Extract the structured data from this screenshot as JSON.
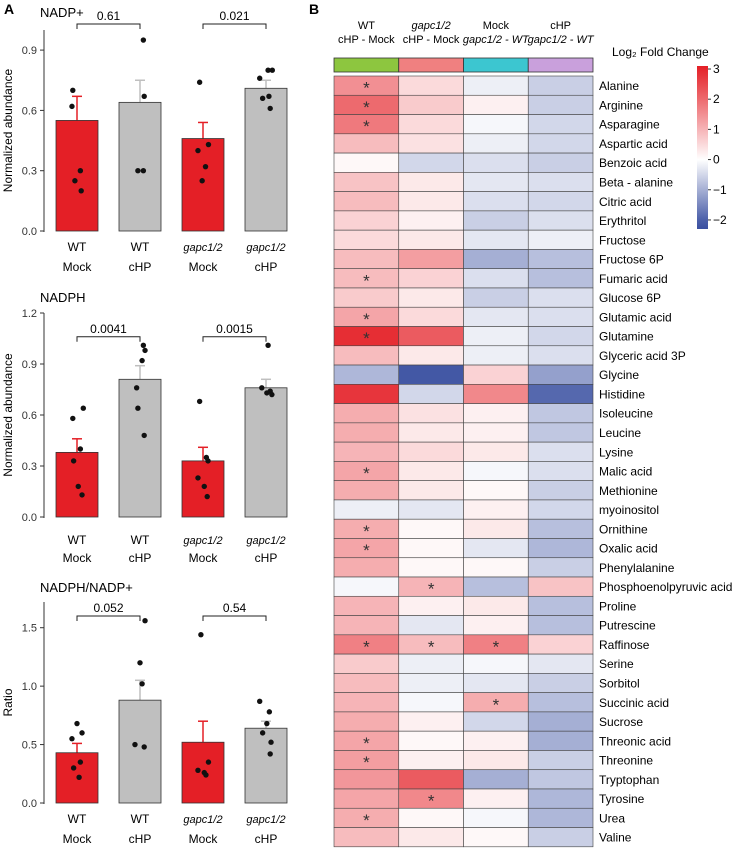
{
  "colors": {
    "mock_bar": "#e41f26",
    "chp_bar": "#bfbfbf",
    "heat_low": "#3a50a1",
    "heat_mid": "#ffffff",
    "heat_high": "#e41f26",
    "col_group_1": "#8dc63f",
    "col_group_2": "#f08080",
    "col_group_3": "#3cc6d0",
    "col_group_4": "#c9a0dc"
  },
  "panel_a": {
    "letter": "A",
    "x_groups": [
      {
        "genotype": "WT",
        "treatment": "Mock",
        "italic": false
      },
      {
        "genotype": "WT",
        "treatment": "cHP",
        "italic": false
      },
      {
        "genotype": "gapc1/2",
        "treatment": "Mock",
        "italic": true
      },
      {
        "genotype": "gapc1/2",
        "treatment": "cHP",
        "italic": true
      }
    ]
  },
  "panel_b": {
    "letter": "B",
    "columns": [
      {
        "line1": "WT",
        "line2": "cHP - Mock",
        "italic1": false,
        "italic2": false
      },
      {
        "line1": "gapc1/2",
        "line2": "cHP - Mock",
        "italic1": true,
        "italic2": false
      },
      {
        "line1": "Mock",
        "line2": "gapc1/2 - WT",
        "italic1": false,
        "italic2": true
      },
      {
        "line1": "cHP",
        "line2": "gapc1/2 - WT",
        "italic1": false,
        "italic2": true
      }
    ],
    "legend": {
      "title": "Log₂ Fold Change",
      "ticks": [
        "3",
        "2",
        "1",
        "0",
        "−1",
        "−2"
      ],
      "tick_values": [
        3,
        2,
        1,
        0,
        -1,
        -2
      ],
      "min": -2.3,
      "max": 3.1
    },
    "significance_mark": "*"
  },
  "chart_data": [
    {
      "type": "bar",
      "title": "NADP+",
      "ylabel": "Normalized abundance",
      "categories": [
        "WT Mock",
        "WT cHP",
        "gapc1/2 Mock",
        "gapc1/2 cHP"
      ],
      "values": [
        0.55,
        0.64,
        0.46,
        0.71
      ],
      "errors": [
        0.12,
        0.11,
        0.08,
        0.04
      ],
      "points": [
        [
          0.7,
          0.62,
          0.3,
          0.25,
          0.2
        ],
        [
          0.95,
          0.67,
          0.3,
          0.3
        ],
        [
          0.74,
          0.43,
          0.4,
          0.32,
          0.25
        ],
        [
          0.8,
          0.8,
          0.76,
          0.67,
          0.66,
          0.61
        ]
      ],
      "point_x": [
        [
          -0.1,
          -0.12,
          0.08,
          -0.05,
          0.1
        ],
        [
          0.08,
          0.1,
          -0.05,
          0.08
        ],
        [
          -0.08,
          0.13,
          -0.12,
          0.06,
          -0.02
        ],
        [
          0.05,
          0.15,
          -0.15,
          0.07,
          -0.08,
          0.1
        ]
      ],
      "yticks": [
        "0.0",
        "0.3",
        "0.6",
        "0.9"
      ],
      "ytick_values": [
        0,
        0.3,
        0.6,
        0.9
      ],
      "ylim": [
        0,
        1.0
      ],
      "comparisons": [
        {
          "from": 0,
          "to": 1,
          "label": "0.61",
          "y": 1.03
        },
        {
          "from": 2,
          "to": 3,
          "label": "0.021",
          "y": 1.03
        }
      ]
    },
    {
      "type": "bar",
      "title": "NADPH",
      "ylabel": "Normalized abundance",
      "categories": [
        "WT Mock",
        "WT cHP",
        "gapc1/2 Mock",
        "gapc1/2 cHP"
      ],
      "values": [
        0.38,
        0.81,
        0.33,
        0.76
      ],
      "errors": [
        0.08,
        0.08,
        0.08,
        0.05
      ],
      "points": [
        [
          0.64,
          0.58,
          0.4,
          0.33,
          0.18,
          0.13
        ],
        [
          1.01,
          0.98,
          0.92,
          0.76,
          0.64,
          0.48
        ],
        [
          0.68,
          0.35,
          0.33,
          0.23,
          0.18,
          0.12
        ],
        [
          1.01,
          0.76,
          0.74,
          0.73,
          0.72
        ]
      ],
      "point_x": [
        [
          0.15,
          -0.1,
          0.08,
          -0.08,
          0.03,
          0.12
        ],
        [
          0.08,
          0.12,
          0.05,
          -0.08,
          -0.05,
          0.1
        ],
        [
          -0.08,
          0.08,
          0.12,
          -0.12,
          0.03,
          0.1
        ],
        [
          0.05,
          -0.1,
          0.1,
          0.02,
          0.14
        ]
      ],
      "yticks": [
        "0.0",
        "0.3",
        "0.6",
        "0.9",
        "1.2"
      ],
      "ytick_values": [
        0,
        0.3,
        0.6,
        0.9,
        1.2
      ],
      "ylim": [
        0,
        1.2
      ],
      "comparisons": [
        {
          "from": 0,
          "to": 1,
          "label": "0.0041",
          "y": 1.06
        },
        {
          "from": 2,
          "to": 3,
          "label": "0.0015",
          "y": 1.06
        }
      ]
    },
    {
      "type": "bar",
      "title": "NADPH/NADP+",
      "ylabel": "Ratio",
      "categories": [
        "WT Mock",
        "WT cHP",
        "gapc1/2 Mock",
        "gapc1/2 cHP"
      ],
      "values": [
        0.43,
        0.88,
        0.52,
        0.64
      ],
      "errors": [
        0.08,
        0.17,
        0.18,
        0.06
      ],
      "points": [
        [
          0.68,
          0.6,
          0.55,
          0.35,
          0.3,
          0.22
        ],
        [
          1.56,
          1.2,
          1.02,
          0.5,
          0.48
        ],
        [
          1.44,
          0.35,
          0.28,
          0.26,
          0.24
        ],
        [
          0.87,
          0.78,
          0.68,
          0.6,
          0.52,
          0.42
        ]
      ],
      "point_x": [
        [
          0.0,
          0.12,
          -0.12,
          0.08,
          -0.08,
          0.05
        ],
        [
          0.12,
          0.0,
          0.05,
          -0.12,
          0.1
        ],
        [
          -0.05,
          0.13,
          -0.12,
          0.03,
          0.07
        ],
        [
          -0.15,
          0.08,
          0.02,
          -0.08,
          0.12,
          0.1
        ]
      ],
      "yticks": [
        "0.0",
        "0.5",
        "1.0",
        "1.5"
      ],
      "ytick_values": [
        0,
        0.5,
        1.0,
        1.5
      ],
      "ylim": [
        0,
        1.72
      ],
      "comparisons": [
        {
          "from": 0,
          "to": 1,
          "label": "0.052",
          "y": 1.6
        },
        {
          "from": 2,
          "to": 3,
          "label": "0.54",
          "y": 1.6
        }
      ]
    },
    {
      "type": "heatmap",
      "title": "",
      "x_labels": [
        "WT cHP - Mock",
        "gapc1/2 cHP - Mock",
        "Mock gapc1/2 - WT",
        "cHP gapc1/2 - WT"
      ],
      "rows": [
        "Alanine",
        "Arginine",
        "Asparagine",
        "Aspartic acid",
        "Benzoic acid",
        "Beta - alanine",
        "Citric acid",
        "Erythritol",
        "Fructose",
        "Fructose 6P",
        "Fumaric acid",
        "Glucose 6P",
        "Glutamic acid",
        "Glutamine",
        "Glyceric acid 3P",
        "Glycine",
        "Histidine",
        "Isoleucine",
        "Leucine",
        "Lysine",
        "Malic acid",
        "Methionine",
        "myoinositol",
        "Ornithine",
        "Oxalic acid",
        "Phenylalanine",
        "Phosphoenolpyruvic acid",
        "Proline",
        "Putrescine",
        "Raffinose",
        "Serine",
        "Sorbitol",
        "Succinic acid",
        "Sucrose",
        "Threonic acid",
        "Threonine",
        "Tryptophan",
        "Tyrosine",
        "Urea",
        "Valine"
      ],
      "values": [
        [
          1.5,
          0.5,
          -0.2,
          -0.6
        ],
        [
          2.0,
          0.7,
          0.2,
          -0.6
        ],
        [
          1.8,
          0.5,
          -0.1,
          -0.5
        ],
        [
          0.9,
          0.4,
          -0.2,
          -0.5
        ],
        [
          0.1,
          -0.5,
          -0.4,
          -0.6
        ],
        [
          0.8,
          0.3,
          -0.3,
          -0.4
        ],
        [
          0.9,
          0.3,
          -0.4,
          -0.5
        ],
        [
          0.6,
          0.2,
          -0.6,
          -0.4
        ],
        [
          0.5,
          0.3,
          -0.3,
          -0.2
        ],
        [
          0.9,
          1.3,
          -1.0,
          -0.8
        ],
        [
          0.9,
          0.6,
          -0.4,
          -0.8
        ],
        [
          0.7,
          0.3,
          -0.6,
          -0.4
        ],
        [
          1.2,
          0.5,
          -0.3,
          -0.4
        ],
        [
          2.8,
          2.2,
          -0.2,
          -0.5
        ],
        [
          0.9,
          0.3,
          -0.2,
          -0.4
        ],
        [
          -0.9,
          -2.1,
          0.6,
          -1.2
        ],
        [
          2.7,
          -0.5,
          1.6,
          -1.9
        ],
        [
          1.1,
          0.4,
          0.2,
          -0.7
        ],
        [
          1.1,
          0.3,
          0.2,
          -0.7
        ],
        [
          1.0,
          0.5,
          0.3,
          -0.4
        ],
        [
          1.2,
          0.3,
          -0.1,
          -0.4
        ],
        [
          1.1,
          0.3,
          0.1,
          -0.6
        ],
        [
          -0.2,
          -0.3,
          0.2,
          -0.5
        ],
        [
          1.1,
          0.1,
          0.3,
          -0.8
        ],
        [
          1.2,
          0.1,
          -0.3,
          -0.9
        ],
        [
          1.1,
          0.1,
          0.1,
          -0.6
        ],
        [
          -0.1,
          1.0,
          -0.8,
          0.8
        ],
        [
          1.0,
          0.2,
          0.3,
          -0.8
        ],
        [
          1.0,
          -0.3,
          0.2,
          -0.8
        ],
        [
          1.7,
          0.9,
          1.7,
          0.6
        ],
        [
          0.7,
          -0.2,
          -0.1,
          -0.3
        ],
        [
          0.9,
          -0.2,
          -0.3,
          -0.6
        ],
        [
          1.0,
          -0.1,
          1.1,
          -0.8
        ],
        [
          1.1,
          0.2,
          -0.5,
          -1.0
        ],
        [
          1.2,
          0.1,
          0.2,
          -1.0
        ],
        [
          1.3,
          0.2,
          0.3,
          -0.6
        ],
        [
          1.4,
          2.2,
          -1.0,
          -0.7
        ],
        [
          1.2,
          1.6,
          0.2,
          -0.9
        ],
        [
          1.1,
          0.1,
          -0.1,
          -0.9
        ],
        [
          0.9,
          0.3,
          0.1,
          -0.6
        ]
      ],
      "significant": [
        [
          0,
          0
        ],
        [
          1,
          0
        ],
        [
          2,
          0
        ],
        [
          10,
          0
        ],
        [
          12,
          0
        ],
        [
          13,
          0
        ],
        [
          20,
          0
        ],
        [
          23,
          0
        ],
        [
          24,
          0
        ],
        [
          26,
          1
        ],
        [
          29,
          0
        ],
        [
          29,
          1
        ],
        [
          29,
          2
        ],
        [
          32,
          2
        ],
        [
          34,
          0
        ],
        [
          35,
          0
        ],
        [
          37,
          1
        ],
        [
          38,
          0
        ]
      ],
      "colorbar": {
        "label": "Log₂ Fold Change",
        "range": [
          -2.3,
          3.1
        ]
      }
    }
  ]
}
